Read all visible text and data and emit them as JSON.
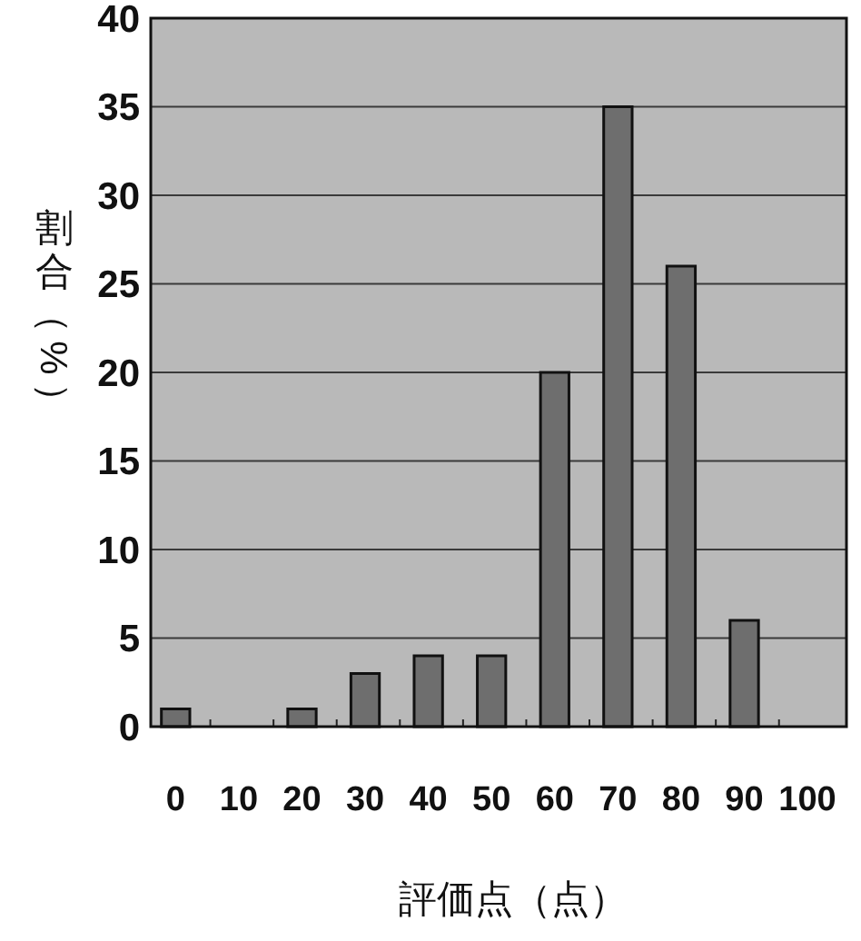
{
  "chart_data": {
    "type": "bar",
    "xlabel": "評価点（点）",
    "ylabel": "割合（%）",
    "categories": [
      "0",
      "10",
      "20",
      "30",
      "40",
      "50",
      "60",
      "70",
      "80",
      "90",
      "100"
    ],
    "values": [
      1,
      0,
      1,
      3,
      4,
      4,
      20,
      35,
      26,
      6,
      0
    ],
    "color": "#6e6e6e",
    "ylim": [
      0,
      40
    ],
    "yticks": [
      0,
      5,
      10,
      15,
      20,
      25,
      30,
      35,
      40
    ],
    "grid": "y"
  }
}
